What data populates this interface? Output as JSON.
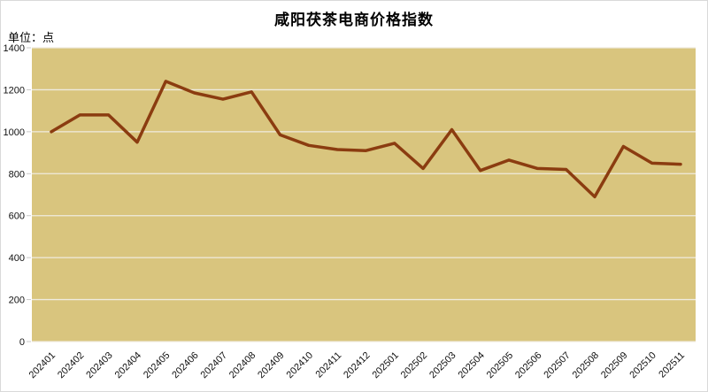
{
  "header": {
    "title": "咸阳茯茶电商价格指数",
    "unit_label": "单位：点"
  },
  "chart_data": {
    "type": "line",
    "title": "咸阳茯茶电商价格指数",
    "unit_label": "单位：点",
    "xlabel": "",
    "ylabel": "单位：点",
    "categories": [
      "202401",
      "202402",
      "202403",
      "202404",
      "202405",
      "202406",
      "202407",
      "202408",
      "202409",
      "202410",
      "202411",
      "202412",
      "202501",
      "202502",
      "202503",
      "202504",
      "202505",
      "202506",
      "202507",
      "202508",
      "202509",
      "202510",
      "202511"
    ],
    "values": [
      1000,
      1080,
      1080,
      950,
      1240,
      1185,
      1155,
      1190,
      985,
      935,
      915,
      910,
      945,
      825,
      1010,
      815,
      865,
      825,
      820,
      690,
      930,
      850,
      845
    ],
    "ylim": [
      0,
      1400
    ],
    "ytick_step": 200,
    "grid": true,
    "legend": "none",
    "colors": {
      "line": "#8b3c10",
      "plot_background": "#d9c57e",
      "gridline": "#efebdf",
      "tick": "#c9c9c9",
      "axis_text": "#111111",
      "title_text": "#000000",
      "window_border": "#d9d9d9"
    }
  }
}
